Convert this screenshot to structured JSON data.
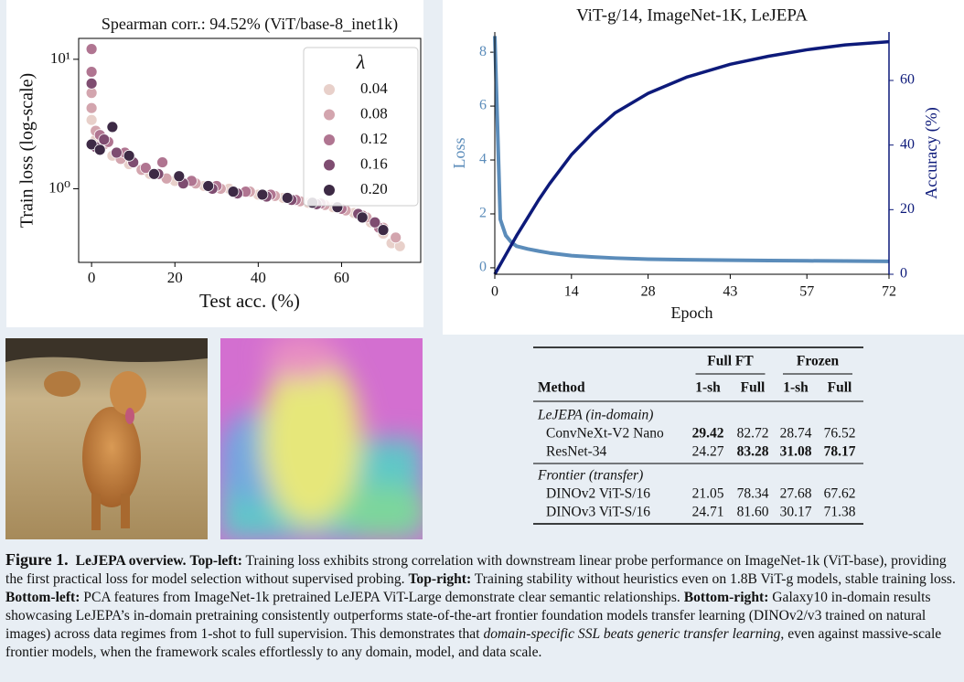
{
  "chart_data": [
    {
      "type": "scatter",
      "title": "Spearman corr.: 94.52% (ViT/base-8_inet1k)",
      "x_label": "Test acc. (%)",
      "y_label": "Train loss (log-scale)",
      "yscale": "log",
      "xlim": [
        -3.1,
        79
      ],
      "ylim": [
        0.27,
        14.5
      ],
      "xticks": [
        0,
        20,
        40,
        60
      ],
      "yticks": [
        {
          "value": 1,
          "label": "10⁰"
        },
        {
          "value": 10,
          "label": "10¹"
        }
      ],
      "legend_title": "λ",
      "legend": "upper right",
      "series": [
        {
          "name": "0.04",
          "color": "#e8d0ca",
          "x": [
            0,
            1,
            2,
            5,
            9,
            14,
            20,
            27,
            33,
            40,
            46,
            52,
            58,
            63,
            67,
            70,
            72,
            74
          ],
          "values": [
            3.4,
            2.4,
            2.0,
            1.8,
            1.55,
            1.3,
            1.15,
            1.05,
            1.0,
            0.9,
            0.85,
            0.78,
            0.72,
            0.65,
            0.55,
            0.45,
            0.38,
            0.36
          ]
        },
        {
          "name": "0.08",
          "color": "#d3a5ae",
          "x": [
            0,
            0,
            1,
            3,
            7,
            12,
            18,
            25,
            31,
            38,
            44,
            50,
            56,
            61,
            66,
            70,
            73
          ],
          "values": [
            5.5,
            4.2,
            2.8,
            2.2,
            1.7,
            1.4,
            1.2,
            1.1,
            1.0,
            0.95,
            0.88,
            0.8,
            0.75,
            0.68,
            0.6,
            0.5,
            0.42
          ]
        },
        {
          "name": "0.12",
          "color": "#b07591",
          "x": [
            0,
            0,
            2,
            4,
            8,
            13,
            17,
            24,
            30,
            37,
            43,
            49,
            55,
            60,
            65,
            69
          ],
          "values": [
            12,
            8,
            2.6,
            2.3,
            1.9,
            1.45,
            1.6,
            1.15,
            1.05,
            0.95,
            0.9,
            0.82,
            0.77,
            0.7,
            0.62,
            0.5
          ]
        },
        {
          "name": "0.16",
          "color": "#7f4d71",
          "x": [
            0,
            1,
            3,
            6,
            10,
            16,
            22,
            29,
            35,
            42,
            48,
            54,
            59,
            64,
            68
          ],
          "values": [
            6.5,
            2.1,
            2.4,
            1.9,
            1.6,
            1.3,
            1.1,
            1.0,
            0.92,
            0.87,
            0.82,
            0.76,
            0.72,
            0.64,
            0.55
          ]
        },
        {
          "name": "0.20",
          "color": "#3d2a45",
          "x": [
            0,
            2,
            5,
            9,
            15,
            21,
            28,
            34,
            41,
            47,
            53,
            59,
            65,
            70
          ],
          "values": [
            2.2,
            2.0,
            3.0,
            1.8,
            1.3,
            1.25,
            1.05,
            0.95,
            0.9,
            0.85,
            0.78,
            0.72,
            0.6,
            0.48
          ]
        }
      ]
    },
    {
      "type": "line",
      "title": "ViT-g/14, ImageNet-1K, LeJEPA",
      "x_label": "Epoch",
      "y_label": "Loss",
      "y2_label": "Accuracy (%)",
      "xlim": [
        0,
        72
      ],
      "xticks": [
        0,
        14,
        28,
        43,
        57,
        72
      ],
      "ylim": [
        -0.24,
        8.75
      ],
      "yticks": [
        0,
        2,
        4,
        6,
        8
      ],
      "y2lim": [
        0,
        75
      ],
      "y2ticks": [
        0,
        20,
        40,
        60
      ],
      "series": [
        {
          "name": "Loss",
          "color": "#5b8cba",
          "x": [
            0,
            1,
            2,
            3,
            4,
            6,
            8,
            10,
            14,
            18,
            22,
            28,
            35,
            43,
            50,
            57,
            64,
            72
          ],
          "values": [
            8.6,
            1.8,
            1.2,
            0.95,
            0.8,
            0.7,
            0.62,
            0.55,
            0.45,
            0.4,
            0.36,
            0.32,
            0.3,
            0.28,
            0.27,
            0.26,
            0.25,
            0.24
          ]
        },
        {
          "name": "Accuracy",
          "color": "#0d1a7a",
          "axis": "y2",
          "x": [
            0,
            1,
            2,
            3,
            4,
            6,
            8,
            10,
            14,
            18,
            22,
            28,
            35,
            43,
            50,
            57,
            64,
            72
          ],
          "values": [
            0,
            3,
            6,
            9,
            12,
            17.5,
            23,
            28,
            37,
            44,
            50,
            56,
            61,
            65,
            67.5,
            69.5,
            71,
            72
          ]
        }
      ]
    }
  ],
  "table": {
    "groups": [
      "Full FT",
      "Frozen"
    ],
    "columns": [
      "Method",
      "1-sh",
      "Full",
      "1-sh",
      "Full"
    ],
    "sections": [
      {
        "title": "LeJEPA (in-domain)",
        "rows": [
          [
            "ConvNeXt-V2 Nano",
            "29.42",
            "82.72",
            "28.74",
            "76.52"
          ],
          [
            "ResNet-34",
            "24.27",
            "83.28",
            "31.08",
            "78.17"
          ]
        ]
      },
      {
        "title": "Frontier (transfer)",
        "rows": [
          [
            "DINOv2 ViT-S/16",
            "21.05",
            "78.34",
            "27.68",
            "67.62"
          ],
          [
            "DINOv3 ViT-S/16",
            "24.71",
            "81.60",
            "30.17",
            "71.38"
          ]
        ]
      }
    ]
  },
  "caption": {
    "parts": [
      "Figure 1.",
      "LeJEPA overview.",
      "Top-left:",
      " Training loss exhibits strong correlation with downstream linear probe performance on ImageNet-1k (ViT-base), providing the first practical loss for model selection without supervised probing. ",
      "Top-right:",
      " Training stability without heuristics even on 1.8B ViT-g models, stable training loss. ",
      "Bottom-left:",
      " PCA features from ImageNet-1k pretrained LeJEPA ViT-Large demonstrate clear semantic relationships. ",
      "Bottom-right:",
      " Galaxy10 in-domain results showcasing LeJEPA’s in-domain pretraining consistently outperforms state-of-the-art frontier foundation models transfer learning (DINOv2/v3 trained on natural images) across data regimes from 1-shot to full supervision. This demonstrates that ",
      "domain-specific SSL beats generic transfer learning",
      ", even against massive-scale frontier models, when the framework scales effortlessly to any domain, model, and data scale."
    ]
  }
}
